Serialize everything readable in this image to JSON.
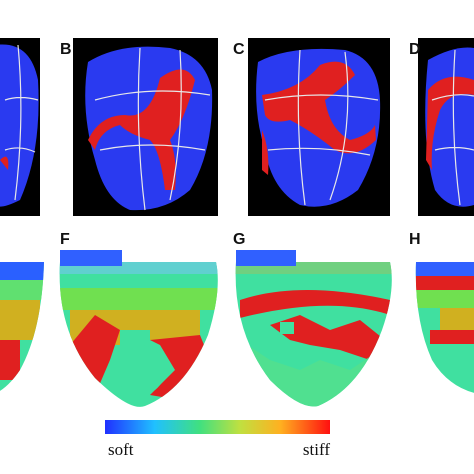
{
  "panel_labels": [
    "B",
    "C",
    "D",
    "F",
    "G",
    "H"
  ],
  "colorbar": {
    "min_label": "soft",
    "max_label": "stiff"
  }
}
